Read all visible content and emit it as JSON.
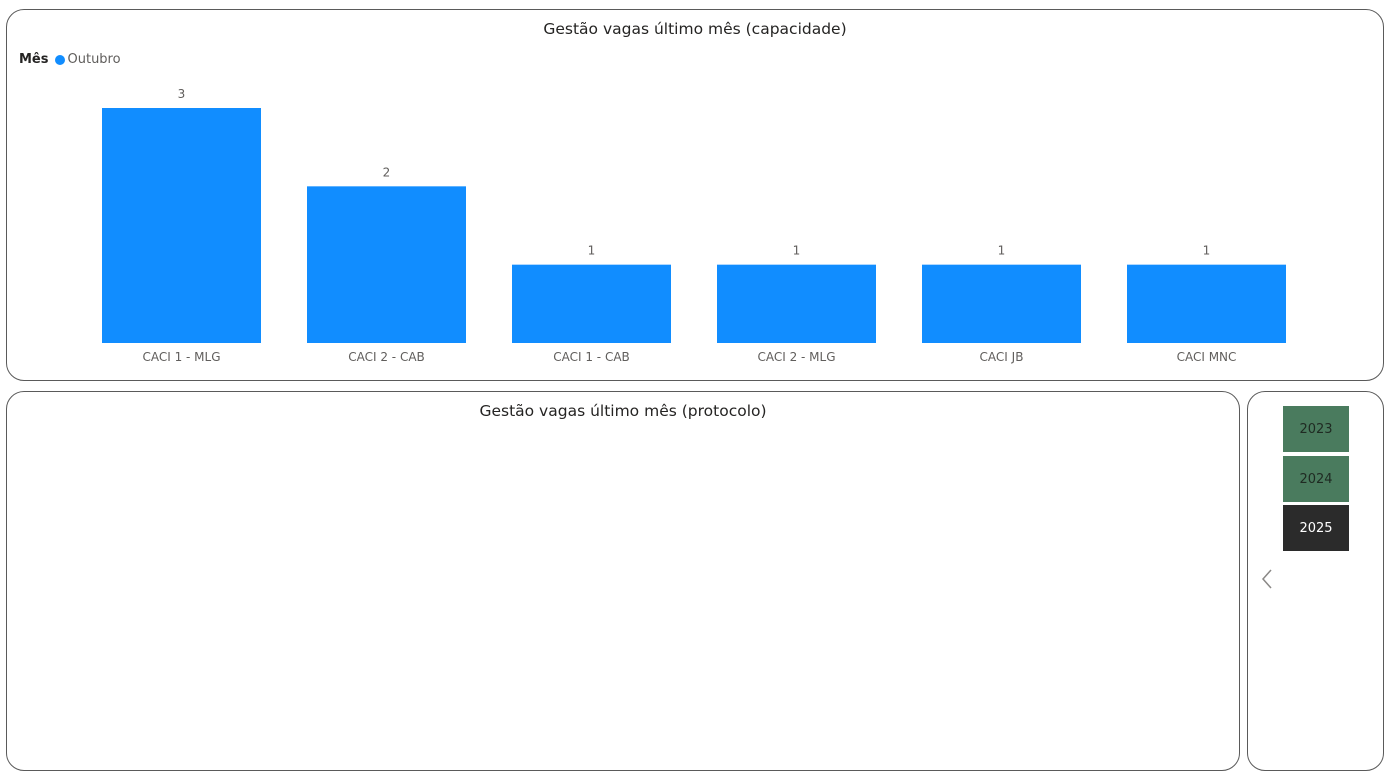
{
  "capacidade_panel": {
    "title": "Gestão vagas último mês (capacidade)",
    "legend": {
      "title": "Mês",
      "entries": [
        "Outubro"
      ]
    }
  },
  "protocolo_panel": {
    "title": "Gestão vagas último mês (protocolo)"
  },
  "year_slicer": {
    "items": [
      {
        "label": "2023",
        "selected": false
      },
      {
        "label": "2024",
        "selected": false
      },
      {
        "label": "2025",
        "selected": true
      }
    ],
    "collapse_icon": "chevron-left-icon"
  },
  "colors": {
    "bar": "#118DFF",
    "year_inactive": "#4a7b5e",
    "year_active": "#2b2b2b"
  },
  "chart_data": {
    "type": "bar",
    "categories": [
      "CACI 1 - MLG",
      "CACI 2 - CAB",
      "CACI 1 - CAB",
      "CACI 2 - MLG",
      "CACI JB",
      "CACI MNC"
    ],
    "series": [
      {
        "name": "Outubro",
        "values": [
          3,
          2,
          1,
          1,
          1,
          1
        ]
      }
    ],
    "data_labels": [
      "3",
      "2",
      "1",
      "1",
      "1",
      "1"
    ],
    "title": "Gestão vagas último mês (capacidade)",
    "legend_title": "Mês",
    "legend_position": "top-left",
    "ylim": [
      0,
      3
    ],
    "grid": false
  }
}
